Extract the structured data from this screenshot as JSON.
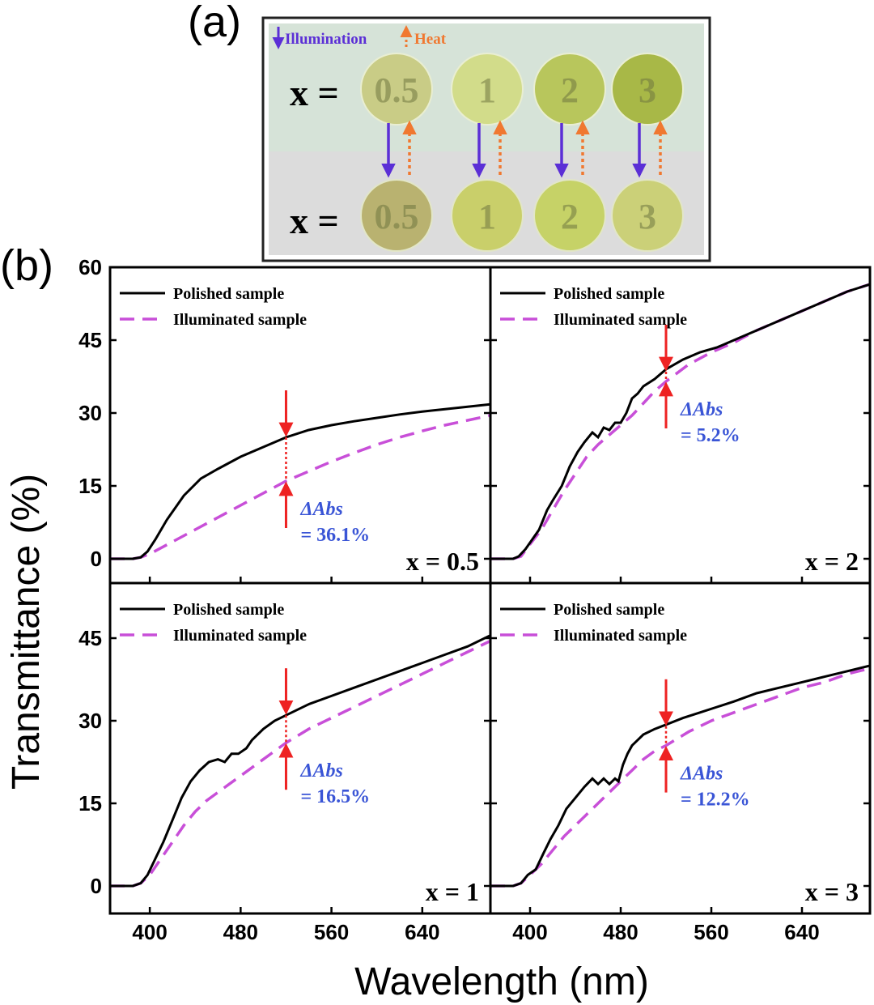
{
  "panel_a": {
    "label": "(a)",
    "legend_illumination": "Illumination",
    "legend_heat": "Heat",
    "row_label_top": "x =",
    "row_label_bottom": "x =",
    "samples": [
      "0.5",
      "1",
      "2",
      "3"
    ],
    "colors": {
      "illumination": "#5b2fd6",
      "heat": "#f07830",
      "bg_top": "#d6e3d8",
      "bg_bottom": "#dcdcdc",
      "top_disks": [
        "#c9cc86",
        "#d2dc8a",
        "#b8c65c",
        "#a8b847"
      ],
      "bottom_disks": [
        "#b9b270",
        "#c9cf6a",
        "#c6d267",
        "#cbd078"
      ]
    }
  },
  "panel_b_label": "(b)",
  "chart_data": {
    "type": "line",
    "shared_ylabel": "Transmittance (%)",
    "shared_xlabel": "Wavelength (nm)",
    "xlim": [
      365,
      700
    ],
    "xticks": [
      400,
      480,
      560,
      640
    ],
    "series_names": [
      "Polished sample",
      "Illuminated sample"
    ],
    "colors": {
      "polished": "#000000",
      "illuminated": "#c84fd8",
      "marker": "#ee2222",
      "annotation": "#3a55d6"
    },
    "panels": [
      {
        "id": "x05",
        "label": "x = 0.5",
        "ylim": [
          -5,
          60
        ],
        "yticks": [
          0,
          15,
          30,
          45,
          60
        ],
        "annotation_label": "ΔAbs",
        "annotation_value": "= 36.1%",
        "marker_x": 520,
        "marker_top_y": 25,
        "marker_bottom_y": 16,
        "polished": {
          "x": [
            365,
            385,
            392,
            398,
            405,
            415,
            430,
            445,
            460,
            480,
            500,
            520,
            540,
            560,
            580,
            600,
            620,
            640,
            660,
            680,
            700
          ],
          "y": [
            0,
            0,
            0.3,
            1.5,
            4,
            8,
            13,
            16.5,
            18.5,
            21,
            23,
            25,
            26.5,
            27.5,
            28.3,
            29,
            29.7,
            30.3,
            30.8,
            31.3,
            31.8
          ]
        },
        "illuminated": {
          "x": [
            365,
            385,
            392,
            400,
            420,
            440,
            460,
            480,
            500,
            520,
            540,
            560,
            580,
            600,
            620,
            640,
            660,
            680,
            700
          ],
          "y": [
            0,
            0,
            0.3,
            1,
            3.5,
            6,
            8.5,
            11,
            13.5,
            16,
            18,
            20,
            21.8,
            23.5,
            25,
            26.3,
            27.5,
            28.5,
            29.5
          ]
        }
      },
      {
        "id": "x2",
        "label": "x = 2",
        "ylim": [
          -5,
          60
        ],
        "yticks": [
          0,
          15,
          30,
          45,
          60
        ],
        "annotation_label": "ΔAbs",
        "annotation_value": "= 5.2%",
        "marker_x": 520,
        "marker_top_y": 38.5,
        "marker_bottom_y": 36.5,
        "polished": {
          "x": [
            365,
            385,
            390,
            396,
            402,
            408,
            415,
            420,
            428,
            435,
            442,
            448,
            455,
            460,
            465,
            470,
            475,
            480,
            485,
            490,
            495,
            500,
            510,
            520,
            535,
            550,
            565,
            580,
            600,
            620,
            640,
            660,
            680,
            700
          ],
          "y": [
            0,
            0,
            0.5,
            2,
            4,
            6,
            10,
            12,
            15,
            19,
            22,
            24,
            26,
            25,
            27,
            26.5,
            28,
            28,
            30,
            33,
            34,
            35.5,
            37,
            39,
            41,
            42.5,
            43.5,
            45,
            47,
            49,
            51,
            53,
            55,
            56.5
          ]
        },
        "illuminated": {
          "x": [
            365,
            385,
            392,
            400,
            410,
            420,
            430,
            440,
            450,
            460,
            470,
            480,
            490,
            500,
            510,
            520,
            540,
            560,
            580,
            600,
            620,
            640,
            660,
            680,
            700
          ],
          "y": [
            0,
            0,
            0.5,
            3,
            6,
            10,
            14,
            17.5,
            21,
            23.5,
            25.5,
            27.5,
            29.5,
            32,
            34.5,
            36.5,
            40,
            42.5,
            44.5,
            47,
            49,
            51,
            53,
            55,
            56.5
          ]
        }
      },
      {
        "id": "x1",
        "label": "x = 1",
        "ylim": [
          -5,
          55
        ],
        "yticks": [
          0,
          15,
          30,
          45
        ],
        "annotation_label": "ΔAbs",
        "annotation_value": "= 16.5%",
        "marker_x": 520,
        "marker_top_y": 31,
        "marker_bottom_y": 26,
        "polished": {
          "x": [
            365,
            385,
            392,
            398,
            405,
            412,
            420,
            428,
            436,
            444,
            452,
            460,
            466,
            472,
            478,
            485,
            490,
            500,
            510,
            520,
            540,
            560,
            580,
            600,
            620,
            640,
            660,
            680,
            700
          ],
          "y": [
            0,
            0,
            0.5,
            2,
            5,
            8,
            12,
            16,
            19,
            21,
            22.5,
            23,
            22.5,
            24,
            24,
            25,
            26.5,
            28.5,
            30,
            31,
            33,
            34.5,
            36,
            37.5,
            39,
            40.5,
            42,
            43.5,
            45.5
          ]
        },
        "illuminated": {
          "x": [
            365,
            385,
            392,
            400,
            410,
            420,
            430,
            440,
            450,
            460,
            470,
            480,
            490,
            500,
            510,
            520,
            540,
            560,
            580,
            600,
            620,
            640,
            660,
            680,
            700
          ],
          "y": [
            0,
            0,
            0.5,
            2,
            5,
            8,
            11,
            13.5,
            15.5,
            17,
            18.5,
            20,
            21.5,
            23,
            24.5,
            26,
            28.5,
            30.5,
            32.5,
            34.5,
            36.5,
            38.5,
            40.5,
            42.5,
            44.5
          ]
        }
      },
      {
        "id": "x3",
        "label": "x = 3",
        "ylim": [
          -5,
          55
        ],
        "yticks": [
          0,
          15,
          30,
          45
        ],
        "annotation_label": "ΔAbs",
        "annotation_value": "= 12.2%",
        "marker_x": 520,
        "marker_top_y": 29,
        "marker_bottom_y": 25.5,
        "polished": {
          "x": [
            365,
            385,
            392,
            398,
            405,
            412,
            418,
            425,
            432,
            440,
            448,
            455,
            460,
            465,
            470,
            475,
            478,
            482,
            486,
            490,
            495,
            500,
            505,
            510,
            520,
            535,
            550,
            565,
            580,
            600,
            620,
            640,
            660,
            680,
            700
          ],
          "y": [
            0,
            0,
            0.5,
            2,
            3,
            6,
            8.5,
            11,
            14,
            16,
            18,
            19.5,
            18.5,
            19.5,
            18.5,
            19.5,
            19,
            22,
            24,
            25.5,
            26.5,
            27.5,
            28,
            28.5,
            29.3,
            30.5,
            31.5,
            32.5,
            33.5,
            35,
            36,
            37,
            38,
            39,
            40
          ]
        },
        "illuminated": {
          "x": [
            365,
            385,
            392,
            400,
            410,
            420,
            430,
            440,
            450,
            460,
            470,
            480,
            490,
            500,
            510,
            520,
            540,
            560,
            580,
            600,
            620,
            640,
            660,
            680,
            700
          ],
          "y": [
            0,
            0,
            0.5,
            2,
            4,
            6.5,
            9,
            11,
            13,
            15,
            17,
            19,
            21,
            23,
            24.5,
            25.5,
            28,
            30,
            31.5,
            33,
            34.5,
            36,
            37,
            38.5,
            39.5
          ]
        }
      }
    ]
  }
}
